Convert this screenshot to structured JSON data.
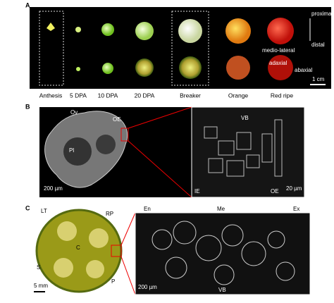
{
  "panel_a": {
    "label": "A",
    "stages": [
      "Anthesis",
      "5 DPA",
      "10 DPA",
      "20 DPA",
      "Breaker",
      "Orange",
      "Red ripe"
    ],
    "axis_labels": [
      "proximal",
      "distal",
      "medio-lateral",
      "adaxial",
      "abaxial"
    ],
    "scale": "1 cm"
  },
  "panel_b": {
    "label": "B",
    "fruit_labels": [
      "Ov",
      "OE",
      "Pl"
    ],
    "fruit_scale": "200 µm",
    "micro_labels": [
      "VB",
      "IE",
      "OE"
    ],
    "micro_scale": "20 µm"
  },
  "panel_c": {
    "label": "C",
    "fruit_labels": [
      "LT",
      "RP",
      "C",
      "S",
      "P"
    ],
    "fruit_scale": "5 mm",
    "micro_labels": [
      "En",
      "Me",
      "Ex",
      "VB"
    ],
    "micro_scale": "200 µm"
  }
}
